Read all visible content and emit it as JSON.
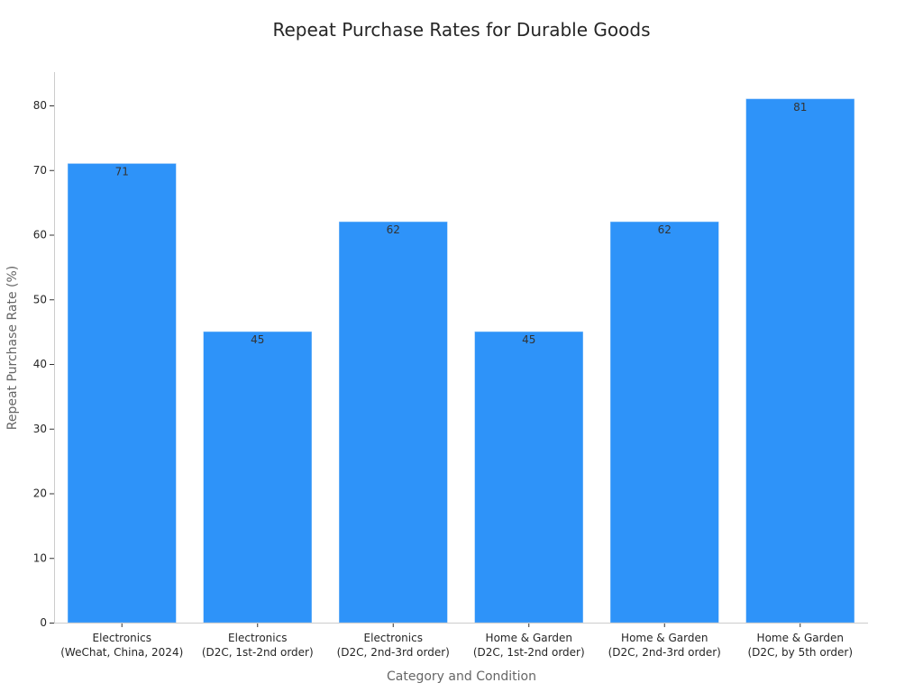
{
  "chart_data": {
    "type": "bar",
    "title": "Repeat Purchase Rates for Durable Goods",
    "xlabel": "Category and Condition",
    "ylabel": "Repeat Purchase Rate (%)",
    "categories": [
      [
        "Electronics",
        "(WeChat, China, 2024)"
      ],
      [
        "Electronics",
        "(D2C, 1st-2nd order)"
      ],
      [
        "Electronics",
        "(D2C, 2nd-3rd order)"
      ],
      [
        "Home & Garden",
        "(D2C, 1st-2nd order)"
      ],
      [
        "Home & Garden",
        "(D2C, 2nd-3rd order)"
      ],
      [
        "Home & Garden",
        "(D2C, by 5th order)"
      ]
    ],
    "values": [
      71,
      45,
      62,
      45,
      62,
      81
    ],
    "ylim": [
      0,
      85
    ],
    "yticks": [
      0,
      10,
      20,
      30,
      40,
      50,
      60,
      70,
      80
    ],
    "grid": false,
    "bar_color": "#2e93f9",
    "data_labels": true
  }
}
